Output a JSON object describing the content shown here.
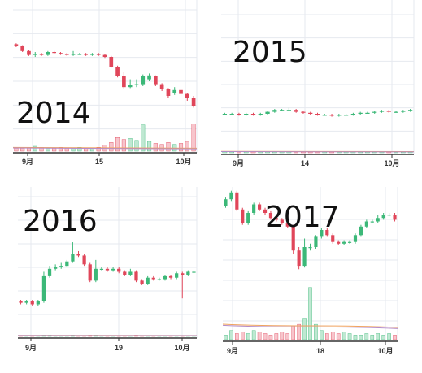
{
  "colors": {
    "up": "#3cb878",
    "down": "#e0465a",
    "up_volume_fill": "#bfe8d2",
    "down_volume_fill": "#f7c5cc",
    "grid": "#e6e9ef",
    "axis": "#333333",
    "ma_orange": "#f0a35e",
    "ma_purple": "#b48cc8"
  },
  "chart_data": [
    {
      "type": "candlestick",
      "title": "2014",
      "x_ticks": [
        "9月",
        "15",
        "10月"
      ],
      "ylim": [
        0,
        100
      ],
      "grid": true,
      "candles": [
        {
          "o": 88,
          "c": 86,
          "h": 89,
          "l": 85
        },
        {
          "o": 86,
          "c": 81,
          "h": 87,
          "l": 80
        },
        {
          "o": 81,
          "c": 77,
          "h": 82,
          "l": 76
        },
        {
          "o": 77,
          "c": 78,
          "h": 80,
          "l": 75
        },
        {
          "o": 78,
          "c": 77,
          "h": 79,
          "l": 76
        },
        {
          "o": 77,
          "c": 80,
          "h": 81,
          "l": 76
        },
        {
          "o": 80,
          "c": 79,
          "h": 81,
          "l": 78
        },
        {
          "o": 79,
          "c": 78,
          "h": 80,
          "l": 77
        },
        {
          "o": 78,
          "c": 77,
          "h": 79,
          "l": 76
        },
        {
          "o": 77,
          "c": 78,
          "h": 81,
          "l": 76
        },
        {
          "o": 78,
          "c": 78,
          "h": 79,
          "l": 77
        },
        {
          "o": 78,
          "c": 77,
          "h": 79,
          "l": 76
        },
        {
          "o": 77,
          "c": 78,
          "h": 79,
          "l": 76
        },
        {
          "o": 78,
          "c": 77,
          "h": 79,
          "l": 76
        },
        {
          "o": 77,
          "c": 75,
          "h": 78,
          "l": 74
        },
        {
          "o": 75,
          "c": 65,
          "h": 76,
          "l": 64
        },
        {
          "o": 65,
          "c": 55,
          "h": 66,
          "l": 54
        },
        {
          "o": 55,
          "c": 44,
          "h": 60,
          "l": 42
        },
        {
          "o": 44,
          "c": 46,
          "h": 52,
          "l": 43
        },
        {
          "o": 46,
          "c": 47,
          "h": 52,
          "l": 44
        },
        {
          "o": 47,
          "c": 55,
          "h": 57,
          "l": 45
        },
        {
          "o": 52,
          "c": 56,
          "h": 58,
          "l": 50
        },
        {
          "o": 55,
          "c": 47,
          "h": 56,
          "l": 45
        },
        {
          "o": 47,
          "c": 42,
          "h": 48,
          "l": 40
        },
        {
          "o": 42,
          "c": 35,
          "h": 43,
          "l": 33
        },
        {
          "o": 38,
          "c": 41,
          "h": 44,
          "l": 36
        },
        {
          "o": 41,
          "c": 37,
          "h": 42,
          "l": 35
        },
        {
          "o": 37,
          "c": 33,
          "h": 38,
          "l": 30
        },
        {
          "o": 33,
          "c": 25,
          "h": 35,
          "l": 23
        }
      ],
      "volume": [
        3,
        3,
        4,
        5,
        4,
        3,
        3,
        4,
        3,
        3,
        4,
        3,
        3,
        4,
        6,
        9,
        14,
        12,
        13,
        11,
        27,
        10,
        8,
        7,
        9,
        7,
        8,
        10,
        28
      ],
      "volume_max": 30
    },
    {
      "type": "candlestick",
      "title": "2015",
      "x_ticks": [
        "9月",
        "14",
        "10月"
      ],
      "ylim": [
        0,
        100
      ],
      "grid": true,
      "candles": [
        {
          "o": 50,
          "c": 50,
          "h": 51,
          "l": 49
        },
        {
          "o": 50,
          "c": 50,
          "h": 51,
          "l": 49
        },
        {
          "o": 50,
          "c": 49,
          "h": 51,
          "l": 48
        },
        {
          "o": 49,
          "c": 50,
          "h": 51,
          "l": 48
        },
        {
          "o": 50,
          "c": 49,
          "h": 51,
          "l": 48
        },
        {
          "o": 49,
          "c": 50,
          "h": 51,
          "l": 48
        },
        {
          "o": 50,
          "c": 52,
          "h": 53,
          "l": 49
        },
        {
          "o": 52,
          "c": 54,
          "h": 55,
          "l": 51
        },
        {
          "o": 54,
          "c": 54,
          "h": 55,
          "l": 53
        },
        {
          "o": 54,
          "c": 54,
          "h": 56,
          "l": 53
        },
        {
          "o": 54,
          "c": 52,
          "h": 55,
          "l": 51
        },
        {
          "o": 52,
          "c": 51,
          "h": 53,
          "l": 50
        },
        {
          "o": 51,
          "c": 50,
          "h": 52,
          "l": 49
        },
        {
          "o": 50,
          "c": 49,
          "h": 51,
          "l": 48
        },
        {
          "o": 49,
          "c": 49,
          "h": 50,
          "l": 48
        },
        {
          "o": 49,
          "c": 48,
          "h": 50,
          "l": 47
        },
        {
          "o": 48,
          "c": 49,
          "h": 50,
          "l": 47
        },
        {
          "o": 49,
          "c": 49,
          "h": 50,
          "l": 48
        },
        {
          "o": 49,
          "c": 50,
          "h": 51,
          "l": 48
        },
        {
          "o": 50,
          "c": 51,
          "h": 52,
          "l": 49
        },
        {
          "o": 51,
          "c": 51,
          "h": 52,
          "l": 50
        },
        {
          "o": 51,
          "c": 52,
          "h": 53,
          "l": 50
        },
        {
          "o": 52,
          "c": 53,
          "h": 54,
          "l": 51
        },
        {
          "o": 53,
          "c": 52,
          "h": 54,
          "l": 51
        },
        {
          "o": 52,
          "c": 52,
          "h": 53,
          "l": 51
        },
        {
          "o": 52,
          "c": 53,
          "h": 54,
          "l": 51
        },
        {
          "o": 53,
          "c": 54,
          "h": 55,
          "l": 52
        }
      ],
      "volume": [
        2,
        2,
        2,
        2,
        2,
        2,
        3,
        3,
        2,
        2,
        2,
        2,
        2,
        2,
        2,
        2,
        2,
        3,
        2,
        2,
        2,
        2,
        3,
        2,
        2,
        2,
        3
      ],
      "volume_max": 30
    },
    {
      "type": "candlestick",
      "title": "2016",
      "x_ticks": [
        "9月",
        "19",
        "10月"
      ],
      "ylim": [
        0,
        100
      ],
      "grid": true,
      "candles": [
        {
          "o": 38,
          "c": 37,
          "h": 39,
          "l": 36
        },
        {
          "o": 37,
          "c": 38,
          "h": 39,
          "l": 36
        },
        {
          "o": 38,
          "c": 36,
          "h": 39,
          "l": 35
        },
        {
          "o": 36,
          "c": 38,
          "h": 39,
          "l": 35
        },
        {
          "o": 38,
          "c": 55,
          "h": 58,
          "l": 37
        },
        {
          "o": 55,
          "c": 60,
          "h": 62,
          "l": 54
        },
        {
          "o": 60,
          "c": 61,
          "h": 63,
          "l": 59
        },
        {
          "o": 61,
          "c": 62,
          "h": 64,
          "l": 60
        },
        {
          "o": 62,
          "c": 65,
          "h": 66,
          "l": 61
        },
        {
          "o": 65,
          "c": 70,
          "h": 78,
          "l": 64
        },
        {
          "o": 70,
          "c": 69,
          "h": 72,
          "l": 68
        },
        {
          "o": 69,
          "c": 63,
          "h": 70,
          "l": 62
        },
        {
          "o": 63,
          "c": 52,
          "h": 64,
          "l": 51
        },
        {
          "o": 52,
          "c": 60,
          "h": 66,
          "l": 51
        },
        {
          "o": 60,
          "c": 60,
          "h": 61,
          "l": 59
        },
        {
          "o": 60,
          "c": 59,
          "h": 61,
          "l": 58
        },
        {
          "o": 59,
          "c": 60,
          "h": 61,
          "l": 58
        },
        {
          "o": 60,
          "c": 58,
          "h": 61,
          "l": 57
        },
        {
          "o": 58,
          "c": 56,
          "h": 59,
          "l": 55
        },
        {
          "o": 56,
          "c": 58,
          "h": 60,
          "l": 55
        },
        {
          "o": 58,
          "c": 52,
          "h": 59,
          "l": 51
        },
        {
          "o": 52,
          "c": 50,
          "h": 53,
          "l": 49
        },
        {
          "o": 50,
          "c": 54,
          "h": 55,
          "l": 49
        },
        {
          "o": 54,
          "c": 53,
          "h": 55,
          "l": 52
        },
        {
          "o": 53,
          "c": 53,
          "h": 54,
          "l": 52
        },
        {
          "o": 53,
          "c": 55,
          "h": 56,
          "l": 52
        },
        {
          "o": 55,
          "c": 54,
          "h": 56,
          "l": 53
        },
        {
          "o": 54,
          "c": 57,
          "h": 58,
          "l": 53
        },
        {
          "o": 57,
          "c": 56,
          "h": 58,
          "l": 40
        },
        {
          "o": 56,
          "c": 58,
          "h": 59,
          "l": 55
        },
        {
          "o": 58,
          "c": 58,
          "h": 59,
          "l": 57
        }
      ],
      "volume": [
        2,
        2,
        2,
        2,
        3,
        3,
        2,
        2,
        2,
        3,
        2,
        2,
        3,
        3,
        2,
        2,
        2,
        2,
        2,
        2,
        3,
        2,
        2,
        2,
        2,
        2,
        2,
        2,
        2,
        2,
        2
      ],
      "volume_max": 30
    },
    {
      "type": "candlestick",
      "title": "2017",
      "x_ticks": [
        "9月",
        "18",
        "10月"
      ],
      "ylim": [
        0,
        100
      ],
      "grid": true,
      "candles": [
        {
          "o": 84,
          "c": 88,
          "h": 89,
          "l": 83
        },
        {
          "o": 88,
          "c": 92,
          "h": 93,
          "l": 87
        },
        {
          "o": 92,
          "c": 82,
          "h": 93,
          "l": 81
        },
        {
          "o": 82,
          "c": 74,
          "h": 83,
          "l": 73
        },
        {
          "o": 74,
          "c": 80,
          "h": 81,
          "l": 73
        },
        {
          "o": 80,
          "c": 85,
          "h": 86,
          "l": 79
        },
        {
          "o": 85,
          "c": 82,
          "h": 86,
          "l": 81
        },
        {
          "o": 82,
          "c": 80,
          "h": 83,
          "l": 79
        },
        {
          "o": 80,
          "c": 77,
          "h": 81,
          "l": 76
        },
        {
          "o": 77,
          "c": 76,
          "h": 78,
          "l": 75
        },
        {
          "o": 76,
          "c": 74,
          "h": 77,
          "l": 73
        },
        {
          "o": 74,
          "c": 72,
          "h": 75,
          "l": 71
        },
        {
          "o": 72,
          "c": 58,
          "h": 73,
          "l": 56
        },
        {
          "o": 58,
          "c": 49,
          "h": 60,
          "l": 47
        },
        {
          "o": 49,
          "c": 60,
          "h": 65,
          "l": 48
        },
        {
          "o": 60,
          "c": 60,
          "h": 62,
          "l": 58
        },
        {
          "o": 60,
          "c": 66,
          "h": 67,
          "l": 59
        },
        {
          "o": 66,
          "c": 70,
          "h": 71,
          "l": 65
        },
        {
          "o": 70,
          "c": 67,
          "h": 71,
          "l": 66
        },
        {
          "o": 67,
          "c": 63,
          "h": 68,
          "l": 62
        },
        {
          "o": 63,
          "c": 62,
          "h": 64,
          "l": 61
        },
        {
          "o": 62,
          "c": 63,
          "h": 64,
          "l": 61
        },
        {
          "o": 63,
          "c": 63,
          "h": 64,
          "l": 62
        },
        {
          "o": 63,
          "c": 67,
          "h": 68,
          "l": 62
        },
        {
          "o": 67,
          "c": 72,
          "h": 73,
          "l": 66
        },
        {
          "o": 72,
          "c": 75,
          "h": 76,
          "l": 71
        },
        {
          "o": 75,
          "c": 75,
          "h": 76,
          "l": 74
        },
        {
          "o": 75,
          "c": 77,
          "h": 79,
          "l": 74
        },
        {
          "o": 77,
          "c": 79,
          "h": 80,
          "l": 76
        },
        {
          "o": 79,
          "c": 79,
          "h": 80,
          "l": 78
        },
        {
          "o": 79,
          "c": 76,
          "h": 80,
          "l": 75
        }
      ],
      "volume": [
        3,
        6,
        4,
        5,
        4,
        6,
        5,
        4,
        3,
        4,
        5,
        4,
        9,
        10,
        14,
        34,
        10,
        6,
        4,
        5,
        4,
        5,
        4,
        3,
        3,
        4,
        3,
        4,
        3,
        4,
        3
      ],
      "volume_max": 36
    }
  ]
}
